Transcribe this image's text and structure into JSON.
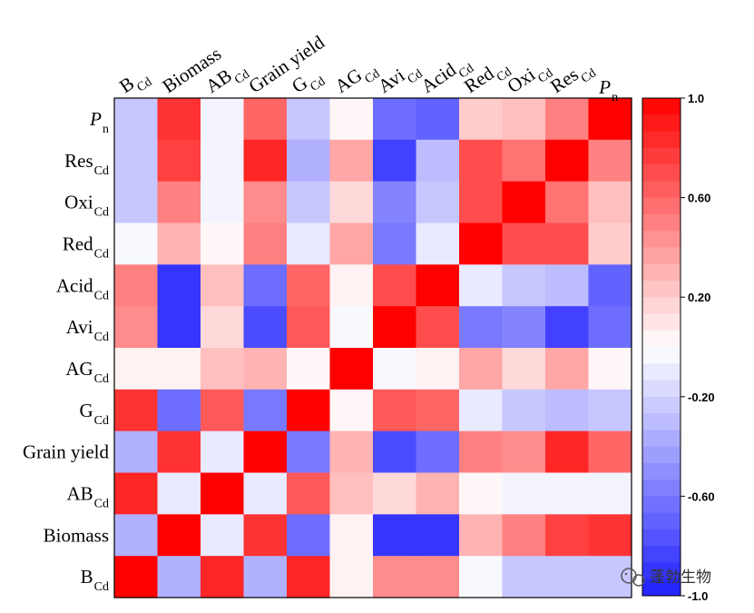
{
  "chart_data": {
    "type": "heatmap",
    "title": "",
    "columns": [
      {
        "base": "B",
        "sub": "Cd",
        "italic": false
      },
      {
        "base": "Biomass",
        "sub": "",
        "italic": false
      },
      {
        "base": "AB",
        "sub": "Cd",
        "italic": false
      },
      {
        "base": "Grain yield",
        "sub": "",
        "italic": false
      },
      {
        "base": "G",
        "sub": "Cd",
        "italic": false
      },
      {
        "base": "AG",
        "sub": "Cd",
        "italic": false
      },
      {
        "base": "Avi",
        "sub": "Cd",
        "italic": false
      },
      {
        "base": "Acid",
        "sub": "Cd",
        "italic": false
      },
      {
        "base": "Red",
        "sub": "Cd",
        "italic": false
      },
      {
        "base": "Oxi",
        "sub": "Cd",
        "italic": false
      },
      {
        "base": "Res",
        "sub": "Cd",
        "italic": false
      },
      {
        "base": "P",
        "sub": "n",
        "italic": true
      }
    ],
    "rows": [
      {
        "base": "P",
        "sub": "n",
        "italic": true
      },
      {
        "base": "Res",
        "sub": "Cd",
        "italic": false
      },
      {
        "base": "Oxi",
        "sub": "Cd",
        "italic": false
      },
      {
        "base": "Red",
        "sub": "Cd",
        "italic": false
      },
      {
        "base": "Acid",
        "sub": "Cd",
        "italic": false
      },
      {
        "base": "Avi",
        "sub": "Cd",
        "italic": false
      },
      {
        "base": "AG",
        "sub": "Cd",
        "italic": false
      },
      {
        "base": "G",
        "sub": "Cd",
        "italic": false
      },
      {
        "base": "Grain yield",
        "sub": "",
        "italic": false
      },
      {
        "base": "AB",
        "sub": "Cd",
        "italic": false
      },
      {
        "base": "Biomass",
        "sub": "",
        "italic": false
      },
      {
        "base": "B",
        "sub": "Cd",
        "italic": false
      }
    ],
    "values": [
      [
        -0.25,
        0.8,
        -0.05,
        0.6,
        -0.25,
        0.03,
        -0.65,
        -0.7,
        0.2,
        0.25,
        0.5,
        1.0
      ],
      [
        -0.25,
        0.75,
        -0.05,
        0.85,
        -0.35,
        0.35,
        -0.85,
        -0.3,
        0.7,
        0.55,
        1.0,
        0.5
      ],
      [
        -0.25,
        0.5,
        -0.05,
        0.45,
        -0.25,
        0.15,
        -0.55,
        -0.25,
        0.7,
        1.0,
        0.55,
        0.25
      ],
      [
        -0.03,
        0.3,
        0.03,
        0.5,
        -0.1,
        0.35,
        -0.6,
        -0.1,
        1.0,
        0.7,
        0.7,
        0.2
      ],
      [
        0.5,
        -0.9,
        0.25,
        -0.65,
        0.6,
        0.05,
        0.7,
        1.0,
        -0.1,
        -0.25,
        -0.3,
        -0.7
      ],
      [
        0.45,
        -0.9,
        0.15,
        -0.8,
        0.65,
        -0.03,
        1.0,
        0.7,
        -0.6,
        -0.55,
        -0.85,
        -0.65
      ],
      [
        0.05,
        0.05,
        0.25,
        0.3,
        0.03,
        1.0,
        -0.03,
        0.05,
        0.35,
        0.15,
        0.35,
        0.03
      ],
      [
        0.8,
        -0.65,
        0.65,
        -0.6,
        1.0,
        0.03,
        0.65,
        0.6,
        -0.1,
        -0.25,
        -0.3,
        -0.25
      ],
      [
        -0.35,
        0.8,
        -0.1,
        1.0,
        -0.6,
        0.3,
        -0.8,
        -0.65,
        0.5,
        0.45,
        0.85,
        0.6
      ],
      [
        0.85,
        -0.1,
        1.0,
        -0.1,
        0.65,
        0.25,
        0.15,
        0.3,
        0.03,
        -0.05,
        -0.05,
        -0.05
      ],
      [
        -0.35,
        1.0,
        -0.1,
        0.8,
        -0.65,
        0.05,
        -0.9,
        -0.9,
        0.3,
        0.5,
        0.75,
        0.8
      ],
      [
        1.0,
        -0.35,
        0.85,
        -0.35,
        0.85,
        0.05,
        0.45,
        0.45,
        -0.03,
        -0.25,
        -0.25,
        -0.25
      ]
    ],
    "colorbar": {
      "min": -1.0,
      "max": 1.0,
      "ticks": [
        {
          "value": 1.0,
          "label": "1.0"
        },
        {
          "value": 0.6,
          "label": "0.60"
        },
        {
          "value": 0.2,
          "label": "0.20"
        },
        {
          "value": -0.2,
          "label": "-0.20"
        },
        {
          "value": -0.6,
          "label": "-0.60"
        },
        {
          "value": -1.0,
          "label": "-1.0"
        }
      ],
      "low_color": "#1f1fff",
      "mid_color": "#ffffff",
      "high_color": "#ff0000"
    }
  },
  "watermark": {
    "text": "蓬勃生物",
    "icon": "wechat-icon"
  }
}
